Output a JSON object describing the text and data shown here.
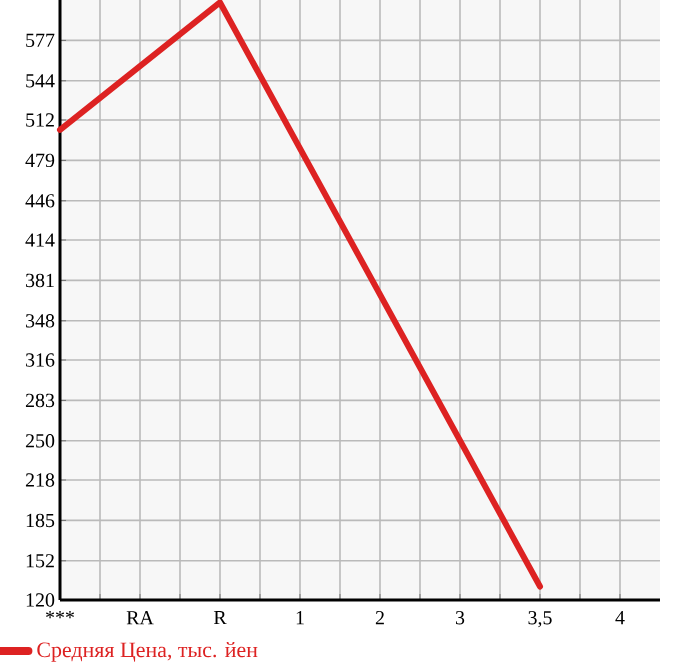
{
  "chart_data": {
    "type": "line",
    "categories": [
      "***",
      "RA",
      "R",
      "1",
      "2",
      "3",
      "3,5",
      "4"
    ],
    "series": [
      {
        "name": "Средняя Цена, тыс. йен",
        "color": "#dd2222",
        "values": [
          504,
          null,
          608,
          null,
          null,
          null,
          131,
          null
        ]
      }
    ],
    "ylim": [
      120,
      610
    ],
    "yticks": [
      120,
      152,
      185,
      218,
      250,
      283,
      316,
      348,
      381,
      414,
      446,
      479,
      512,
      544,
      577
    ],
    "grid": true,
    "legend": "bottom left",
    "marker": "none",
    "line_style": "solid"
  }
}
